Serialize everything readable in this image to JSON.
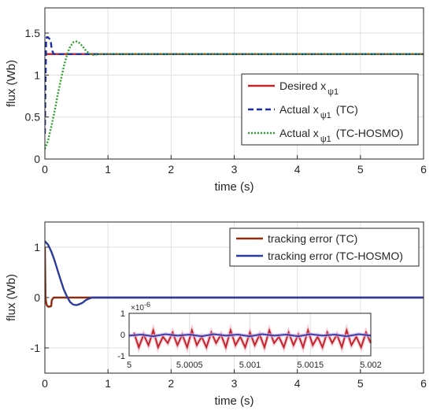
{
  "chart_data": [
    {
      "type": "line",
      "xlabel": "time (s)",
      "ylabel": "flux (Wb)",
      "xlim": [
        0,
        6
      ],
      "ylim": [
        0,
        1.8
      ],
      "xticks": [
        "0",
        "1",
        "2",
        "3",
        "4",
        "5",
        "6"
      ],
      "yticks": [
        "0",
        "0.5",
        "1",
        "1.5"
      ],
      "grid": true,
      "legend_position": "right",
      "legend": [
        "Desired x",
        "Actual x",
        "Actual x"
      ],
      "legend_sub": [
        "ψ1",
        "ψ1",
        "ψ1"
      ],
      "legend_suffix": [
        "",
        "(TC)",
        "(TC-HOSMO)"
      ],
      "series": [
        {
          "name": "Desired x ψ1",
          "color": "#c0262a",
          "style": "solid",
          "x": [
            0,
            0.02,
            6
          ],
          "y": [
            1.25,
            1.25,
            1.25
          ]
        },
        {
          "name": "Actual x ψ1 (TC)",
          "color": "#1f2f9e",
          "style": "dashed",
          "x": [
            0,
            0.01,
            0.02,
            0.03,
            0.04,
            0.05,
            0.06,
            0.09,
            0.11,
            0.14,
            0.2,
            6
          ],
          "y": [
            0.3,
            0.9,
            1.4,
            1.45,
            1.45,
            1.45,
            1.44,
            1.42,
            1.3,
            1.25,
            1.25,
            1.25
          ]
        },
        {
          "name": "Actual x ψ1 (TC-HOSMO)",
          "color": "#2aa32a",
          "style": "dotted",
          "x": [
            0,
            0.05,
            0.1,
            0.15,
            0.2,
            0.25,
            0.3,
            0.35,
            0.4,
            0.45,
            0.5,
            0.55,
            0.6,
            0.65,
            0.7,
            0.75,
            0.8,
            0.85,
            0.9,
            6
          ],
          "y": [
            0.12,
            0.22,
            0.38,
            0.55,
            0.75,
            0.93,
            1.1,
            1.24,
            1.34,
            1.39,
            1.4,
            1.38,
            1.34,
            1.29,
            1.26,
            1.24,
            1.24,
            1.25,
            1.25,
            1.25
          ]
        }
      ]
    },
    {
      "type": "line",
      "xlabel": "time (s)",
      "ylabel": "flux (Wb)",
      "xlim": [
        0,
        6
      ],
      "ylim": [
        -1.5,
        1.5
      ],
      "xticks": [
        "0",
        "1",
        "2",
        "3",
        "4",
        "5",
        "6"
      ],
      "yticks": [
        "-1",
        "0",
        "1"
      ],
      "grid": true,
      "legend_position": "top-right",
      "legend": [
        "tracking error (TC)",
        "tracking error (TC-HOSMO)"
      ],
      "series": [
        {
          "name": "tracking error (TC)",
          "color": "#8b2d10",
          "style": "solid",
          "x": [
            0,
            0.005,
            0.01,
            0.02,
            0.03,
            0.05,
            0.08,
            0.1,
            0.11,
            0.14,
            0.2,
            0.4,
            0.6,
            0.8,
            0.85,
            6
          ],
          "y": [
            1.0,
            0.5,
            0.0,
            -0.1,
            -0.15,
            -0.18,
            -0.18,
            -0.17,
            -0.05,
            0.0,
            0.0,
            0.0,
            0.0,
            0.0,
            0.0,
            0.0
          ]
        },
        {
          "name": "tracking error (TC-HOSMO)",
          "color": "#2b3c9c",
          "style": "solid",
          "x": [
            0,
            0.05,
            0.1,
            0.15,
            0.2,
            0.25,
            0.3,
            0.35,
            0.4,
            0.45,
            0.5,
            0.55,
            0.6,
            0.65,
            0.7,
            0.75,
            0.8,
            0.85,
            0.9,
            6
          ],
          "y": [
            1.12,
            1.05,
            0.92,
            0.75,
            0.55,
            0.35,
            0.16,
            0.02,
            -0.09,
            -0.14,
            -0.15,
            -0.13,
            -0.1,
            -0.05,
            -0.02,
            0.0,
            0.0,
            0.0,
            0.0,
            0.0
          ]
        }
      ],
      "inset": {
        "xlim": [
          5,
          5.002
        ],
        "ylim": [
          -1,
          1
        ],
        "xticks": [
          "5",
          "5.0005",
          "5.001",
          "5.0015",
          "5.002"
        ],
        "yticks": [
          "-1",
          "0",
          "1"
        ],
        "exponent": "×10",
        "exponent_power": "-6",
        "series": [
          {
            "name": "tracking error (TC)",
            "color": "#c0262a",
            "x": [
              5.00004,
              5.00008,
              5.00012,
              5.00016,
              5.0002,
              5.00024,
              5.00028,
              5.00032,
              5.00036,
              5.0004,
              5.00044,
              5.00048,
              5.00052,
              5.00056,
              5.0006,
              5.00064,
              5.00068,
              5.00072,
              5.00076,
              5.0008,
              5.00084,
              5.00088,
              5.00092,
              5.00096,
              5.001,
              5.00104,
              5.00108,
              5.00112,
              5.00116,
              5.0012,
              5.00124,
              5.00128,
              5.00132,
              5.00136,
              5.0014,
              5.00144,
              5.00148,
              5.00152,
              5.00156,
              5.0016,
              5.00164,
              5.00168,
              5.00172,
              5.00176,
              5.0018,
              5.00184,
              5.00188,
              5.00192,
              5.00196,
              5.002
            ],
            "y": [
              0.1,
              -0.6,
              0.0,
              -0.5,
              0.2,
              -0.6,
              -0.1,
              -0.4,
              0.1,
              -0.5,
              0.0,
              -0.6,
              0.2,
              -0.5,
              -0.1,
              -0.6,
              0.1,
              -0.4,
              0.0,
              -0.6,
              0.2,
              -0.5,
              -0.1,
              -0.6,
              0.1,
              -0.5,
              0.0,
              -0.6,
              0.2,
              -0.4,
              -0.1,
              -0.6,
              0.1,
              -0.5,
              0.0,
              -0.6,
              0.2,
              -0.5,
              -0.1,
              -0.6,
              0.1,
              -0.4,
              0.0,
              -0.6,
              0.2,
              -0.5,
              -0.1,
              -0.6,
              0.1,
              -0.4
            ]
          },
          {
            "name": "tracking error (TC-HOSMO)",
            "color": "#3b3faa",
            "x": [
              5.0,
              5.0001,
              5.0002,
              5.0003,
              5.0004,
              5.0005,
              5.0006,
              5.0007,
              5.0008,
              5.0009,
              5.001,
              5.0011,
              5.0012,
              5.0013,
              5.0014,
              5.0015,
              5.0016,
              5.0017,
              5.0018,
              5.0019,
              5.002
            ],
            "y": [
              -0.05,
              0.0,
              -0.08,
              0.02,
              -0.05,
              0.0,
              -0.08,
              0.02,
              -0.05,
              0.0,
              -0.08,
              0.02,
              -0.05,
              0.0,
              -0.08,
              0.02,
              -0.05,
              0.0,
              -0.08,
              0.02,
              -0.05
            ]
          }
        ]
      }
    }
  ]
}
